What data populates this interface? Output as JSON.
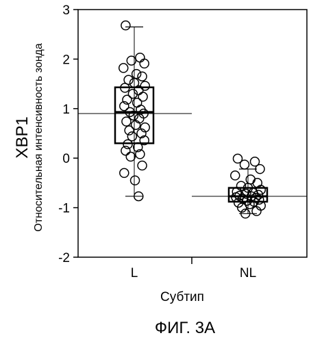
{
  "figure": {
    "caption": "ФИГ. 3А"
  },
  "chart_data": {
    "type": "box",
    "title": "",
    "xlabel": "Субтип",
    "ylabel_main": "XBP1",
    "ylabel_sub": "Относительная интенсивность зонда",
    "ylim": [
      -2,
      3
    ],
    "yticks": [
      -2,
      -1,
      0,
      1,
      2,
      3
    ],
    "categories": [
      "L",
      "NL"
    ],
    "grid": false,
    "groups": [
      {
        "category": "L",
        "mean": 0.9,
        "box": {
          "q1": 0.3,
          "median": 0.93,
          "q3": 1.43
        },
        "whiskers": {
          "low": -0.77,
          "high": 2.65
        },
        "points": [
          2.68,
          2.03,
          1.97,
          1.91,
          1.82,
          1.7,
          1.65,
          1.58,
          1.52,
          1.46,
          1.42,
          1.37,
          1.3,
          1.24,
          1.18,
          1.12,
          1.05,
          0.98,
          0.93,
          0.9,
          0.86,
          0.8,
          0.74,
          0.67,
          0.62,
          0.56,
          0.5,
          0.44,
          0.36,
          0.28,
          0.22,
          0.15,
          0.08,
          0.03,
          -0.15,
          -0.3,
          -0.45,
          -0.77
        ]
      },
      {
        "category": "NL",
        "mean": -0.77,
        "box": {
          "q1": -0.88,
          "median": -0.77,
          "q3": -0.6
        },
        "whiskers": {
          "low": -1.12,
          "high": -0.22
        },
        "points": [
          -0.01,
          -0.07,
          -0.13,
          -0.22,
          -0.35,
          -0.43,
          -0.5,
          -0.56,
          -0.6,
          -0.64,
          -0.68,
          -0.7,
          -0.72,
          -0.74,
          -0.76,
          -0.77,
          -0.79,
          -0.8,
          -0.82,
          -0.84,
          -0.86,
          -0.88,
          -0.9,
          -0.93,
          -0.96,
          -1.0,
          -1.07,
          -1.12
        ]
      }
    ]
  }
}
